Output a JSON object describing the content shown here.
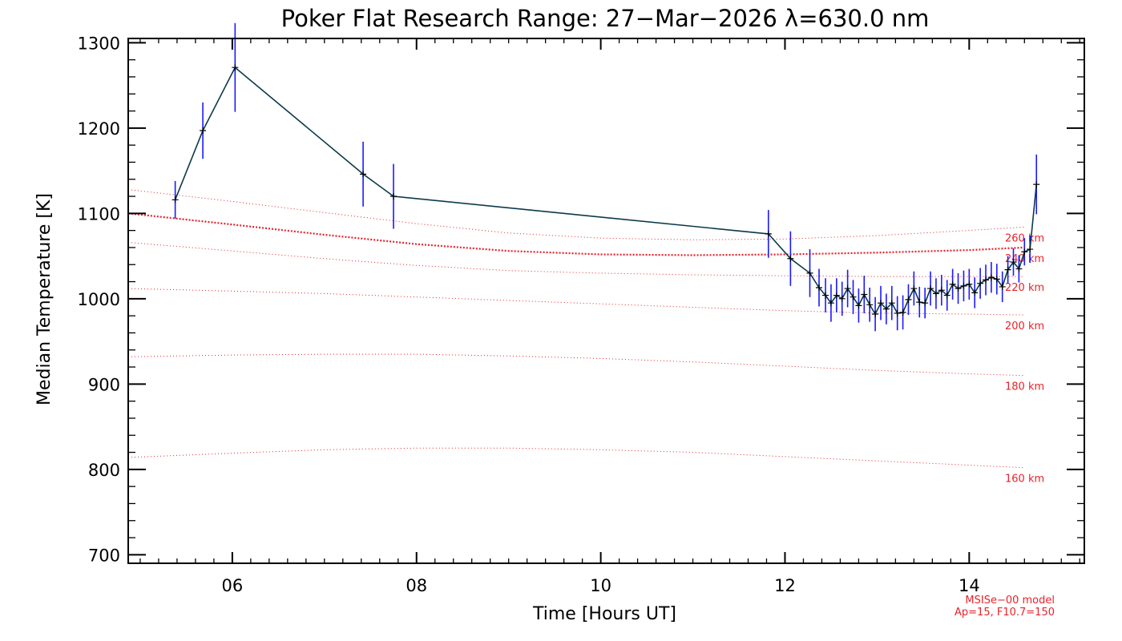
{
  "chart_data": {
    "type": "line",
    "title": "Poker Flat Research Range: 27−Mar−2026 λ=630.0 nm",
    "xlabel": "Time [Hours UT]",
    "ylabel": "Median Temperature [K]",
    "xlim": [
      4.87,
      15.25
    ],
    "ylim": [
      690,
      1305
    ],
    "x_ticks": [
      6,
      8,
      10,
      12,
      14
    ],
    "x_tick_labels": [
      "06",
      "08",
      "10",
      "12",
      "14"
    ],
    "y_ticks": [
      700,
      800,
      900,
      1000,
      1100,
      1200,
      1300
    ],
    "y_tick_labels": [
      "700",
      "800",
      "900",
      "1000",
      "1100",
      "1200",
      "1300"
    ],
    "grid": false,
    "colors": {
      "data_line": "#0b3a4a",
      "error_bar": "#1a1aff",
      "marker": "#000000",
      "model": "#e8222a"
    },
    "series": [
      {
        "x": [
          5.38,
          5.68,
          6.03,
          7.42,
          7.75,
          11.82,
          12.06,
          12.27,
          12.37,
          12.44,
          12.5,
          12.56,
          12.62,
          12.68,
          12.74,
          12.8,
          12.86,
          12.92,
          12.98,
          13.04,
          13.1,
          13.16,
          13.22,
          13.28,
          13.34,
          13.4,
          13.46,
          13.52,
          13.58,
          13.64,
          13.7,
          13.76,
          13.82,
          13.88,
          13.94,
          14.0,
          14.06,
          14.12,
          14.18,
          14.24,
          14.3,
          14.36,
          14.42,
          14.48,
          14.54,
          14.6,
          14.66,
          14.73
        ],
        "y": [
          1116,
          1197,
          1271,
          1146,
          1120,
          1076,
          1047,
          1030,
          1013,
          1004,
          995,
          1004,
          1000,
          1012,
          1002,
          992,
          1005,
          993,
          982,
          995,
          988,
          995,
          983,
          984,
          999,
          1012,
          996,
          995,
          1012,
          1006,
          1010,
          1004,
          1017,
          1012,
          1015,
          1017,
          1007,
          1018,
          1022,
          1025,
          1023,
          1014,
          1034,
          1043,
          1035,
          1055,
          1058,
          1134
        ],
        "error": [
          22,
          33,
          52,
          38,
          38,
          28,
          32,
          28,
          22,
          20,
          22,
          20,
          20,
          22,
          20,
          20,
          22,
          20,
          20,
          20,
          18,
          20,
          20,
          20,
          18,
          20,
          18,
          18,
          20,
          18,
          18,
          18,
          18,
          18,
          18,
          18,
          18,
          18,
          18,
          18,
          18,
          18,
          16,
          16,
          16,
          16,
          16,
          35
        ]
      }
    ],
    "model_curves": [
      {
        "label": "260 km",
        "bold": false,
        "x": [
          4.87,
          6,
          7,
          8,
          9,
          10,
          11,
          12,
          13,
          14,
          14.6
        ],
        "y": [
          1128,
          1114,
          1101,
          1088,
          1077,
          1071,
          1069,
          1070,
          1074,
          1080,
          1084
        ]
      },
      {
        "label": "240 km",
        "bold": true,
        "x": [
          4.87,
          6,
          7,
          8,
          9,
          10,
          11,
          12,
          13,
          14,
          14.6
        ],
        "y": [
          1100,
          1087,
          1075,
          1064,
          1056,
          1052,
          1051,
          1052,
          1054,
          1057,
          1060
        ]
      },
      {
        "label": "220 km",
        "bold": false,
        "x": [
          4.87,
          6,
          7,
          8,
          9,
          10,
          11,
          12,
          13,
          14,
          14.6
        ],
        "y": [
          1066,
          1056,
          1047,
          1039,
          1033,
          1030,
          1028,
          1027,
          1026,
          1026,
          1026
        ]
      },
      {
        "label": "200 km",
        "bold": false,
        "x": [
          4.87,
          6,
          7,
          8,
          9,
          10,
          11,
          12,
          13,
          14,
          14.6
        ],
        "y": [
          1012,
          1009,
          1006,
          1002,
          998,
          994,
          990,
          986,
          983,
          982,
          981
        ]
      },
      {
        "label": "180 km",
        "bold": false,
        "x": [
          4.87,
          6,
          7,
          8,
          9,
          10,
          11,
          12,
          13,
          14,
          14.6
        ],
        "y": [
          932,
          934,
          935,
          935,
          933,
          930,
          926,
          921,
          916,
          912,
          910
        ]
      },
      {
        "label": "160 km",
        "bold": false,
        "x": [
          4.87,
          6,
          7,
          8,
          9,
          10,
          11,
          12,
          13,
          14,
          14.6
        ],
        "y": [
          814,
          819,
          823,
          825,
          825,
          823,
          820,
          815,
          810,
          805,
          802
        ]
      }
    ],
    "model_annotation": [
      "MSISe−00 model",
      "Ap=15, F10.7=150"
    ]
  }
}
